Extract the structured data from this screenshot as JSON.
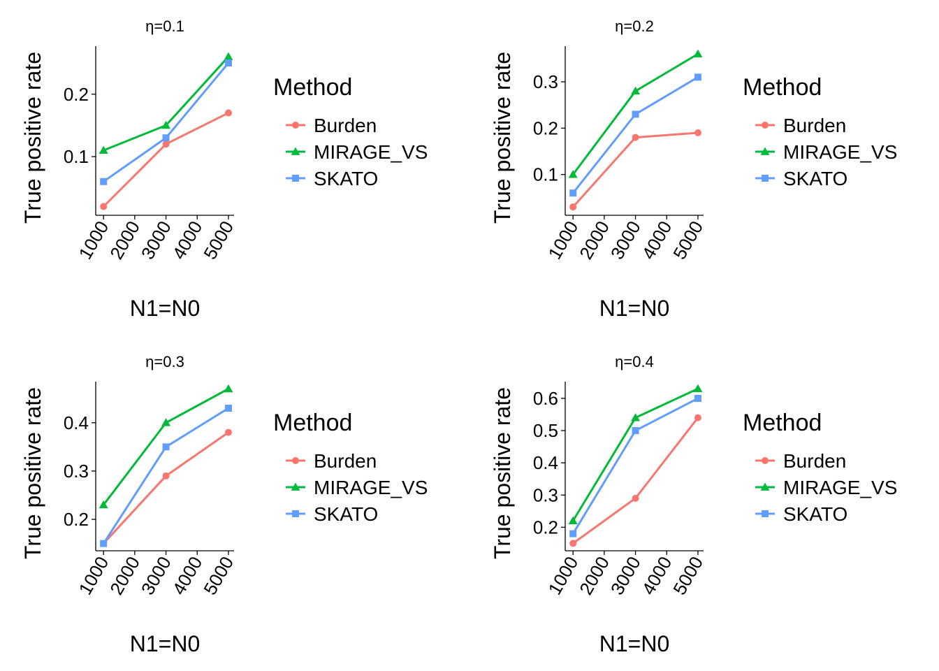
{
  "legend": {
    "title": "Method",
    "entries": [
      {
        "name": "Burden",
        "color": "#F8766D",
        "marker": "circle"
      },
      {
        "name": "MIRAGE_VS",
        "color": "#00BA38",
        "marker": "triangle"
      },
      {
        "name": "SKATO",
        "color": "#619CFF",
        "marker": "square"
      }
    ]
  },
  "chart_data": [
    {
      "type": "line",
      "title": "η=0.1",
      "xlabel": "N1=N0",
      "ylabel": "True positive rate",
      "x": [
        1000,
        3000,
        5000
      ],
      "xticks": [
        1000,
        2000,
        3000,
        4000,
        5000
      ],
      "xlim": [
        750,
        5180
      ],
      "yticks": [
        0.1,
        0.2
      ],
      "ylim": [
        0.006,
        0.277
      ],
      "series": [
        {
          "name": "Burden",
          "values": [
            0.02,
            0.12,
            0.17
          ]
        },
        {
          "name": "MIRAGE_VS",
          "values": [
            0.11,
            0.15,
            0.26
          ]
        },
        {
          "name": "SKATO",
          "values": [
            0.06,
            0.13,
            0.25
          ]
        }
      ]
    },
    {
      "type": "line",
      "title": "η=0.2",
      "xlabel": "N1=N0",
      "ylabel": "True positive rate",
      "x": [
        1000,
        3000,
        5000
      ],
      "xticks": [
        1000,
        2000,
        3000,
        4000,
        5000
      ],
      "xlim": [
        750,
        5180
      ],
      "yticks": [
        0.1,
        0.2,
        0.3
      ],
      "ylim": [
        0.012,
        0.377
      ],
      "series": [
        {
          "name": "Burden",
          "values": [
            0.03,
            0.18,
            0.19
          ]
        },
        {
          "name": "MIRAGE_VS",
          "values": [
            0.1,
            0.28,
            0.36
          ]
        },
        {
          "name": "SKATO",
          "values": [
            0.06,
            0.23,
            0.31
          ]
        }
      ]
    },
    {
      "type": "line",
      "title": "η=0.3",
      "xlabel": "N1=N0",
      "ylabel": "True positive rate",
      "x": [
        1000,
        3000,
        5000
      ],
      "xticks": [
        1000,
        2000,
        3000,
        4000,
        5000
      ],
      "xlim": [
        750,
        5180
      ],
      "yticks": [
        0.2,
        0.3,
        0.4
      ],
      "ylim": [
        0.135,
        0.485
      ],
      "series": [
        {
          "name": "Burden",
          "values": [
            0.15,
            0.29,
            0.38
          ]
        },
        {
          "name": "MIRAGE_VS",
          "values": [
            0.23,
            0.4,
            0.47
          ]
        },
        {
          "name": "SKATO",
          "values": [
            0.15,
            0.35,
            0.43
          ]
        }
      ]
    },
    {
      "type": "line",
      "title": "η=0.4",
      "xlabel": "N1=N0",
      "ylabel": "True positive rate",
      "x": [
        1000,
        3000,
        5000
      ],
      "xticks": [
        1000,
        2000,
        3000,
        4000,
        5000
      ],
      "xlim": [
        750,
        5180
      ],
      "yticks": [
        0.2,
        0.3,
        0.4,
        0.5,
        0.6
      ],
      "ylim": [
        0.127,
        0.652
      ],
      "series": [
        {
          "name": "Burden",
          "values": [
            0.15,
            0.29,
            0.54
          ]
        },
        {
          "name": "MIRAGE_VS",
          "values": [
            0.22,
            0.54,
            0.63
          ]
        },
        {
          "name": "SKATO",
          "values": [
            0.18,
            0.5,
            0.6
          ]
        }
      ]
    }
  ]
}
